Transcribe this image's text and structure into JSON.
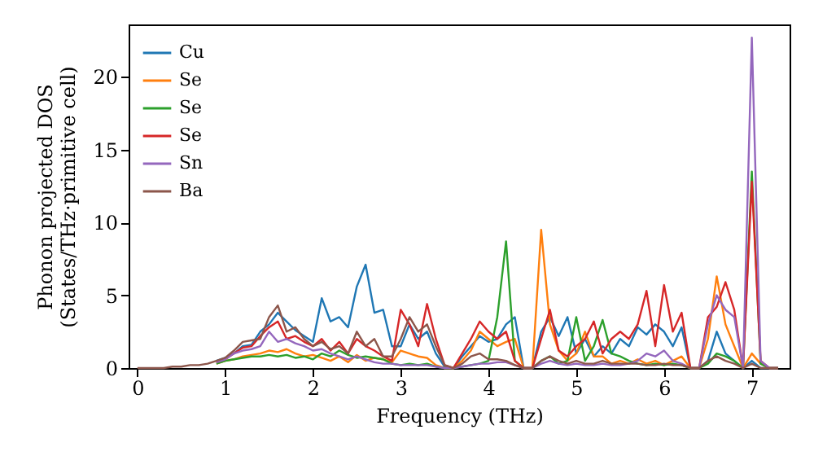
{
  "chart_data": {
    "type": "line",
    "xlabel": "Frequency (THz)",
    "ylabel": "Phonon projected DOS\n(States/THz·primitive cell)",
    "x": [
      0,
      0.1,
      0.2,
      0.3,
      0.4,
      0.5,
      0.6,
      0.7,
      0.8,
      0.9,
      1.0,
      1.1,
      1.2,
      1.3,
      1.4,
      1.5,
      1.6,
      1.7,
      1.8,
      1.9,
      2.0,
      2.1,
      2.2,
      2.3,
      2.4,
      2.5,
      2.6,
      2.7,
      2.8,
      2.9,
      3.0,
      3.1,
      3.2,
      3.3,
      3.4,
      3.5,
      3.6,
      3.7,
      3.8,
      3.9,
      4.0,
      4.1,
      4.2,
      4.3,
      4.4,
      4.5,
      4.6,
      4.7,
      4.8,
      4.9,
      5.0,
      5.1,
      5.2,
      5.3,
      5.4,
      5.5,
      5.6,
      5.7,
      5.8,
      5.9,
      6.0,
      6.1,
      6.2,
      6.3,
      6.4,
      6.5,
      6.6,
      6.7,
      6.8,
      6.9,
      7.0,
      7.1,
      7.2,
      7.3
    ],
    "series": [
      {
        "name": "Cu",
        "color": "#1f77b4",
        "values": [
          null,
          null,
          null,
          null,
          null,
          null,
          null,
          null,
          null,
          0.5,
          0.7,
          1.0,
          1.5,
          1.6,
          2.5,
          3.0,
          3.8,
          3.2,
          2.6,
          2.2,
          1.8,
          4.8,
          3.2,
          3.5,
          2.8,
          5.6,
          7.1,
          3.8,
          4.0,
          1.5,
          1.5,
          3.0,
          2.0,
          2.5,
          1.0,
          0.1,
          0,
          0.8,
          1.5,
          2.2,
          1.8,
          2.0,
          3.0,
          3.5,
          0,
          0,
          2.5,
          3.5,
          2.2,
          3.5,
          1.0,
          2.0,
          0.8,
          1.5,
          1.0,
          2.0,
          1.5,
          2.8,
          2.3,
          3.0,
          2.5,
          1.5,
          2.8,
          0,
          0,
          0.5,
          2.5,
          1.0,
          0.5,
          0,
          0.5,
          0,
          0,
          0
        ]
      },
      {
        "name": "Se",
        "color": "#ff7f0e",
        "values": [
          null,
          null,
          null,
          null,
          null,
          null,
          null,
          null,
          null,
          0.3,
          0.5,
          0.6,
          0.8,
          0.9,
          1.0,
          1.2,
          1.1,
          1.3,
          1.0,
          0.8,
          0.9,
          0.7,
          0.5,
          0.8,
          0.4,
          0.9,
          0.5,
          0.7,
          0.6,
          0.4,
          1.2,
          1.0,
          0.8,
          0.7,
          0.2,
          0,
          0,
          0.5,
          1.2,
          2.5,
          2.0,
          1.5,
          1.8,
          2.0,
          0,
          0,
          9.5,
          3.0,
          1.2,
          0.5,
          1.0,
          2.5,
          0.8,
          0.8,
          0.3,
          0.5,
          0.3,
          0.6,
          0.3,
          0.5,
          0.2,
          0.5,
          0.8,
          0,
          0,
          2.0,
          6.3,
          3.0,
          1.5,
          0,
          1.0,
          0.3,
          0,
          0
        ]
      },
      {
        "name": "Se",
        "color": "#2ca02c",
        "values": [
          null,
          null,
          null,
          null,
          null,
          null,
          null,
          null,
          null,
          0.3,
          0.5,
          0.6,
          0.7,
          0.8,
          0.8,
          0.9,
          0.8,
          0.9,
          0.7,
          0.8,
          0.6,
          1.0,
          0.8,
          1.2,
          0.9,
          0.7,
          0.8,
          0.7,
          0.6,
          0.3,
          0.2,
          0.3,
          0.2,
          0.3,
          0.1,
          0,
          0,
          0.1,
          0.2,
          0.3,
          0.5,
          3.5,
          8.7,
          0.5,
          0,
          0,
          0.5,
          0.8,
          0.3,
          0.5,
          3.5,
          0.5,
          1.5,
          3.3,
          1.0,
          0.8,
          0.5,
          0.3,
          0.2,
          0.3,
          0.2,
          0.3,
          0.2,
          0,
          0,
          0.3,
          1.0,
          0.8,
          0.5,
          0,
          13.5,
          0.3,
          0,
          0
        ]
      },
      {
        "name": "Se",
        "color": "#d62728",
        "values": [
          null,
          null,
          null,
          null,
          null,
          null,
          null,
          null,
          null,
          0.4,
          0.6,
          1.0,
          1.4,
          1.5,
          2.2,
          2.8,
          3.2,
          2.0,
          2.2,
          1.8,
          1.5,
          2.0,
          1.2,
          1.8,
          1.0,
          2.0,
          1.5,
          1.2,
          0.8,
          0.5,
          4.0,
          3.0,
          1.5,
          4.4,
          2.0,
          0.2,
          0,
          1.0,
          2.0,
          3.2,
          2.5,
          2.0,
          2.5,
          0.5,
          0,
          0,
          2.0,
          4.0,
          1.2,
          0.8,
          1.5,
          2.0,
          3.2,
          1.0,
          2.0,
          2.5,
          2.0,
          3.0,
          5.3,
          1.5,
          5.7,
          2.5,
          3.8,
          0,
          0,
          3.5,
          4.2,
          5.9,
          4.0,
          0,
          12.8,
          0.5,
          0,
          0
        ]
      },
      {
        "name": "Sn",
        "color": "#9467bd",
        "values": [
          null,
          null,
          null,
          null,
          null,
          null,
          null,
          null,
          null,
          0.4,
          0.6,
          1.0,
          1.2,
          1.3,
          1.5,
          2.5,
          1.8,
          2.0,
          1.7,
          1.5,
          1.2,
          1.3,
          1.0,
          0.8,
          0.6,
          0.8,
          0.6,
          0.4,
          0.3,
          0.3,
          0.2,
          0.2,
          0.2,
          0.2,
          0.1,
          0,
          0,
          0.1,
          0.2,
          0.3,
          0.3,
          0.4,
          0.4,
          0.2,
          0,
          0,
          0.3,
          0.5,
          0.3,
          0.2,
          0.3,
          0.2,
          0.2,
          0.3,
          0.2,
          0.2,
          0.3,
          0.5,
          1.0,
          0.8,
          1.2,
          0.5,
          0.3,
          0,
          0,
          3.0,
          5.0,
          4.0,
          3.5,
          0,
          22.7,
          0.5,
          0,
          0
        ]
      },
      {
        "name": "Ba",
        "color": "#8c564b",
        "values": [
          0,
          0,
          0,
          0,
          0.1,
          0.1,
          0.2,
          0.2,
          0.3,
          0.5,
          0.7,
          1.2,
          1.8,
          1.9,
          2.0,
          3.5,
          4.3,
          2.5,
          2.8,
          2.0,
          1.5,
          1.8,
          1.3,
          1.5,
          1.0,
          2.5,
          1.5,
          2.0,
          0.8,
          0.8,
          2.0,
          3.5,
          2.5,
          3.0,
          1.5,
          0.2,
          0,
          0.3,
          0.8,
          1.0,
          0.6,
          0.6,
          0.5,
          0.2,
          0,
          0,
          0.5,
          0.8,
          0.5,
          0.3,
          0.5,
          0.3,
          0.3,
          0.5,
          0.3,
          0.3,
          0.3,
          0.3,
          0.2,
          0.2,
          0.3,
          0.2,
          0.2,
          0,
          0,
          0.5,
          0.8,
          0.5,
          0.3,
          0,
          0.3,
          0,
          0,
          0
        ]
      }
    ],
    "xlim": [
      -0.1,
      7.43
    ],
    "ylim": [
      0,
      23.6
    ],
    "xticks": [
      0,
      1,
      2,
      3,
      4,
      5,
      6,
      7
    ],
    "yticks": [
      0,
      5,
      10,
      15,
      20
    ],
    "grid": false,
    "legend": "top left",
    "marker": "none",
    "line_style": "solid"
  }
}
